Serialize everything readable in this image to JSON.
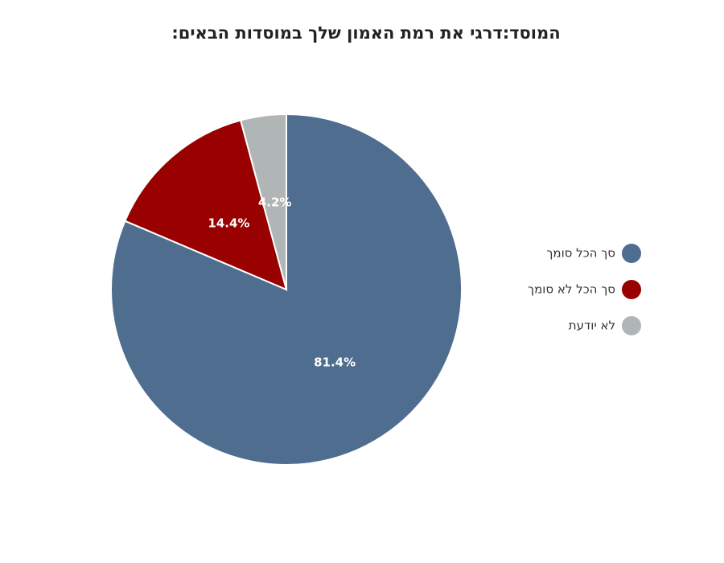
{
  "chart_data": {
    "type": "pie",
    "title": "המוסד:דרגי את רמת האמון שלך במוסדות הבאים:",
    "categories": [
      "סך הכל סומך",
      "סך הכל לא סומך",
      "לא יודעת"
    ],
    "values": [
      81.4,
      14.4,
      4.2
    ],
    "value_labels": [
      "81.4%",
      "14.4%",
      "4.2%"
    ],
    "colors": [
      "#4f6d8f",
      "#990000",
      "#b0b5b5"
    ],
    "legend": "right"
  }
}
